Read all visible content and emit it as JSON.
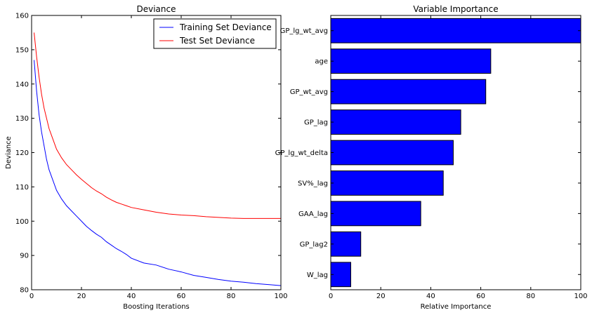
{
  "chart_data": [
    {
      "type": "line",
      "title": "Deviance",
      "xlabel": "Boosting Iterations",
      "ylabel": "Deviance",
      "xlim": [
        0,
        100
      ],
      "ylim": [
        80,
        160
      ],
      "xticks": [
        0,
        20,
        40,
        60,
        80,
        100
      ],
      "yticks": [
        80,
        90,
        100,
        110,
        120,
        130,
        140,
        150,
        160
      ],
      "grid": false,
      "legend": "top-right",
      "series": [
        {
          "name": "Training Set Deviance",
          "color": "#0000ff",
          "x": [
            1,
            2,
            3,
            4,
            5,
            6,
            7,
            8,
            10,
            12,
            14,
            16,
            18,
            20,
            22,
            24,
            26,
            28,
            30,
            32,
            34,
            36,
            38,
            40,
            45,
            50,
            55,
            60,
            65,
            70,
            75,
            80,
            85,
            90,
            95,
            100
          ],
          "values": [
            147,
            138,
            131,
            126,
            122,
            118,
            115,
            113,
            109,
            106.5,
            104.5,
            103,
            101.5,
            100,
            98.5,
            97.3,
            96.2,
            95.3,
            94,
            93,
            92,
            91.2,
            90.3,
            89.2,
            87.8,
            87.2,
            86,
            85.2,
            84.2,
            83.6,
            83,
            82.5,
            82.2,
            81.8,
            81.5,
            81.2
          ]
        },
        {
          "name": "Test Set Deviance",
          "color": "#ff0000",
          "x": [
            1,
            2,
            3,
            4,
            5,
            6,
            7,
            8,
            10,
            12,
            14,
            16,
            18,
            20,
            22,
            24,
            26,
            28,
            30,
            32,
            34,
            36,
            38,
            40,
            45,
            50,
            55,
            60,
            65,
            70,
            75,
            80,
            85,
            90,
            95,
            100
          ],
          "values": [
            155,
            148,
            142,
            137,
            133,
            130,
            127,
            125,
            121,
            118.5,
            116.5,
            115,
            113.5,
            112.2,
            111,
            109.8,
            108.8,
            108,
            107,
            106.2,
            105.5,
            105,
            104.5,
            104,
            103.3,
            102.6,
            102.1,
            101.8,
            101.6,
            101.3,
            101.1,
            100.9,
            100.8,
            100.8,
            100.8,
            100.8
          ]
        }
      ]
    },
    {
      "type": "bar",
      "orientation": "horizontal",
      "title": "Variable Importance",
      "xlabel": "Relative Importance",
      "ylabel": "",
      "xlim": [
        0,
        100
      ],
      "xticks": [
        0,
        20,
        40,
        60,
        80,
        100
      ],
      "grid": false,
      "bar_color": "#0000ff",
      "categories": [
        "GP_lg_wt_avg",
        "age",
        "GP_wt_avg",
        "GP_lag",
        "GP_lg_wt_delta",
        "SV%_lag",
        "GAA_lag",
        "GP_lag2",
        "W_lag"
      ],
      "values": [
        100,
        64,
        62,
        52,
        49,
        45,
        36,
        12,
        8
      ]
    }
  ]
}
